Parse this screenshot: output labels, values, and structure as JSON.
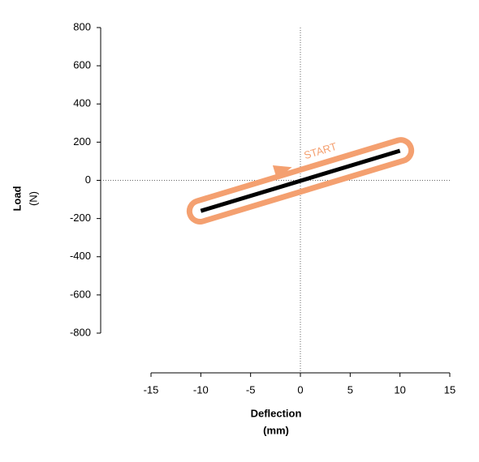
{
  "chart_data": {
    "type": "line",
    "xlabel": "Deflection",
    "xlabel_unit": "(mm)",
    "ylabel": "Load",
    "ylabel_unit": "(N)",
    "annotation": "START",
    "x": [
      -10,
      10
    ],
    "series": [
      {
        "color": "#000000",
        "values": [
          -160,
          155
        ]
      }
    ],
    "highlight_color": "#f4a070",
    "xlim": [
      -15,
      15
    ],
    "xticks": [
      -15,
      -10,
      -5,
      0,
      5,
      10,
      15
    ],
    "ylim": [
      -800,
      800
    ],
    "yticks": [
      -800,
      -600,
      -400,
      -200,
      0,
      200,
      400,
      600,
      800
    ]
  }
}
